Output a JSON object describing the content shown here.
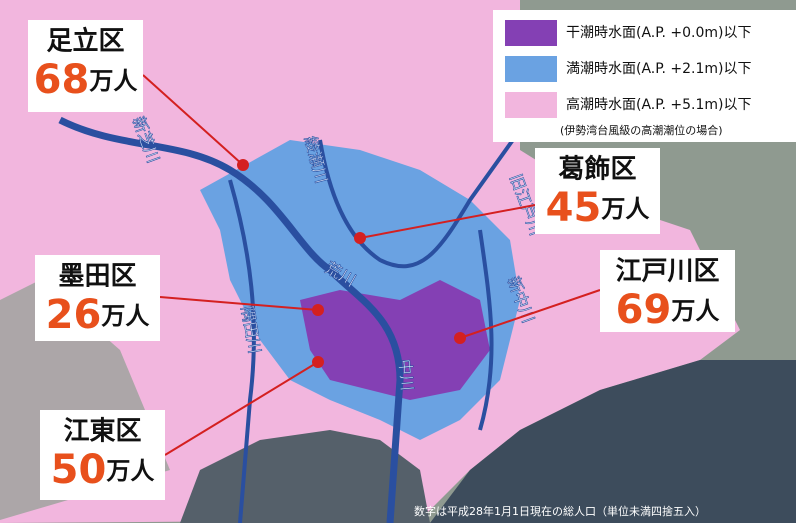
{
  "legend": {
    "items": [
      {
        "label": "干潮時水面(A.P. +0.0m)以下",
        "color": "#8440b4"
      },
      {
        "label": "満潮時水面(A.P. +2.1m)以下",
        "color": "#6aa2e2"
      },
      {
        "label": "高潮時水面(A.P. +5.1m)以下",
        "color": "#f2b6de"
      }
    ],
    "note": "(伊勢湾台風級の高潮潮位の場合)"
  },
  "wards": [
    {
      "name": "足立区",
      "population": "68",
      "unit": "万人"
    },
    {
      "name": "葛飾区",
      "population": "45",
      "unit": "万人"
    },
    {
      "name": "墨田区",
      "population": "26",
      "unit": "万人"
    },
    {
      "name": "江戸川区",
      "population": "69",
      "unit": "万人"
    },
    {
      "name": "江東区",
      "population": "50",
      "unit": "万人"
    }
  ],
  "rivers": [
    "荒川",
    "綾瀬川",
    "中川",
    "隅田川",
    "新中川",
    "旧江戸川",
    "新芝川"
  ],
  "footnote": "数字は平成28年1月1日現在の総人口（単位未満四捨五入）"
}
